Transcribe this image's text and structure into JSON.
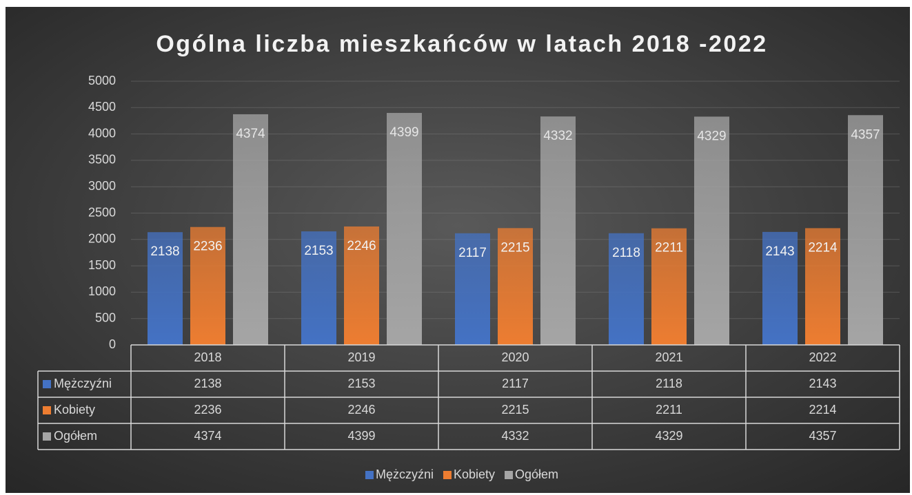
{
  "chart_data": {
    "type": "bar",
    "title": "Ogólna liczba mieszkańców w latach 2018 -2022",
    "categories": [
      "2018",
      "2019",
      "2020",
      "2021",
      "2022"
    ],
    "series": [
      {
        "name": "Mężczyźni",
        "color": "#4472c4",
        "values": [
          2138,
          2153,
          2117,
          2118,
          2143
        ]
      },
      {
        "name": "Kobiety",
        "color": "#ed7d31",
        "values": [
          2236,
          2246,
          2215,
          2211,
          2214
        ]
      },
      {
        "name": "Ogółem",
        "color": "#a5a5a5",
        "values": [
          4374,
          4399,
          4332,
          4329,
          4357
        ]
      }
    ],
    "ylim": [
      0,
      5000
    ],
    "yticks": [
      0,
      500,
      1000,
      1500,
      2000,
      2500,
      3000,
      3500,
      4000,
      4500,
      5000
    ],
    "grid": true,
    "legend": "bottom",
    "data_table": true
  }
}
